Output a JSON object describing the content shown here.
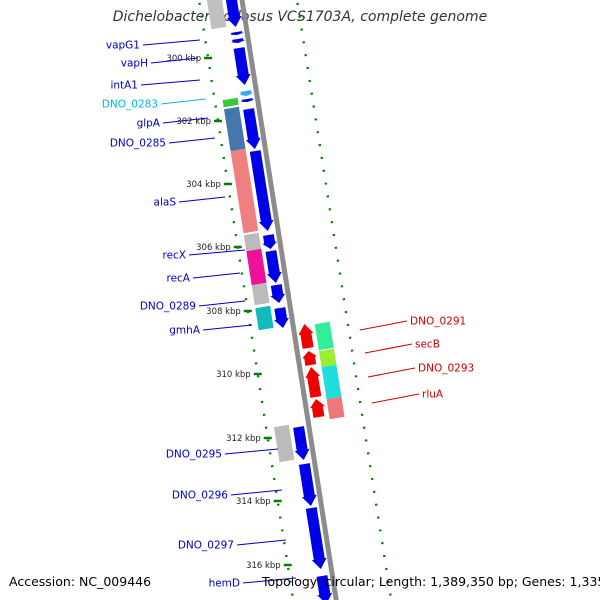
{
  "title": "Dichelobacter nodosus VCS1703A, complete genome",
  "footer": {
    "accession": "Accession: NC_009446",
    "summary": "Topology: circular; Length: 1,389,350 bp; Genes: 1,335"
  },
  "colors": {
    "backbone": "#8c8c8c",
    "tick": "#008000",
    "forward_label": "#0000c0",
    "reverse_label": "#cc0000",
    "highlight_label": "#00b8e6"
  },
  "ticks": [
    "300 kbp",
    "302 kbp",
    "304 kbp",
    "306 kbp",
    "308 kbp",
    "310 kbp",
    "312 kbp",
    "314 kbp",
    "316 kbp"
  ],
  "genes_left": [
    {
      "label": "vapG1",
      "strand": "+"
    },
    {
      "label": "vapH",
      "strand": "+"
    },
    {
      "label": "intA1",
      "strand": "+"
    },
    {
      "label": "DNO_0283",
      "strand": "+"
    },
    {
      "label": "glpA",
      "strand": "+"
    },
    {
      "label": "DNO_0285",
      "strand": "+"
    },
    {
      "label": "alaS",
      "strand": "+"
    },
    {
      "label": "recX",
      "strand": "+"
    },
    {
      "label": "recA",
      "strand": "+"
    },
    {
      "label": "DNO_0289",
      "strand": "+"
    },
    {
      "label": "gmhA",
      "strand": "+"
    },
    {
      "label": "DNO_0295",
      "strand": "+"
    },
    {
      "label": "DNO_0296",
      "strand": "+"
    },
    {
      "label": "DNO_0297",
      "strand": "+"
    },
    {
      "label": "hemD",
      "strand": "+"
    }
  ],
  "genes_right": [
    {
      "label": "DNO_0291",
      "strand": "-"
    },
    {
      "label": "secB",
      "strand": "-"
    },
    {
      "label": "DNO_0293",
      "strand": "-"
    },
    {
      "label": "rluA",
      "strand": "-"
    }
  ]
}
